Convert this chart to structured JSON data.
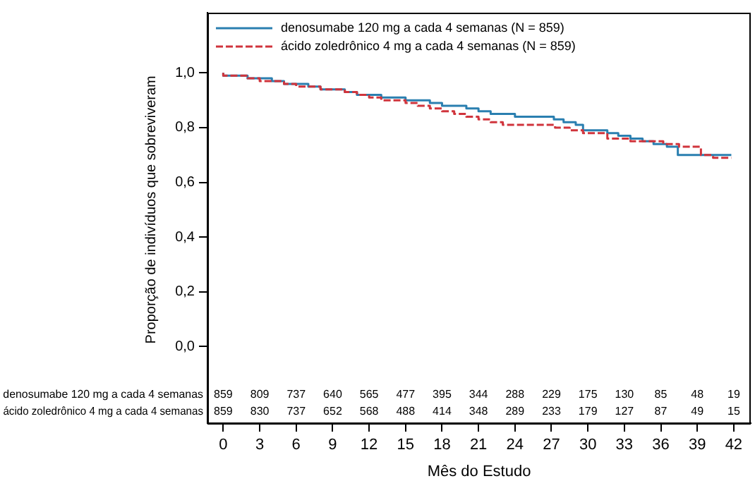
{
  "chart_data": {
    "type": "step",
    "xlabel": "Mês do Estudo",
    "ylabel": "Proporção de indivíduos que sobreviveram",
    "xlim": [
      -1.3,
      43.4
    ],
    "ylim": [
      -0.28,
      1.22
    ],
    "xticks": [
      0,
      3,
      6,
      9,
      12,
      15,
      18,
      21,
      24,
      27,
      30,
      33,
      36,
      39,
      42
    ],
    "yticks": [
      {
        "value": 0,
        "label": "0,0"
      },
      {
        "value": 0.2,
        "label": "0,2"
      },
      {
        "value": 0.4,
        "label": "0,4"
      },
      {
        "value": 0.6,
        "label": "0,6"
      },
      {
        "value": 0.8,
        "label": "0,8"
      },
      {
        "value": 1,
        "label": "1,0"
      }
    ],
    "grid": false,
    "legend": "top left",
    "marker": "none",
    "series": [
      {
        "name": "denosumabe 120 mg a cada 4 semanas (N = 859)",
        "color": "#2a7fb0",
        "line_style": "solid",
        "x": [
          0,
          1,
          2,
          3,
          4,
          5,
          6,
          7,
          8,
          9,
          10,
          11,
          12,
          13,
          14,
          15,
          17,
          18,
          19,
          20,
          21,
          22,
          23,
          24,
          26.7,
          27.2,
          28,
          29,
          29.6,
          30,
          31.6,
          32.5,
          33.5,
          34.5,
          35.4,
          36.5,
          37.4,
          38.1,
          41.8
        ],
        "values": [
          1,
          0.99,
          0.99,
          0.98,
          0.98,
          0.97,
          0.96,
          0.96,
          0.95,
          0.94,
          0.94,
          0.93,
          0.92,
          0.92,
          0.91,
          0.91,
          0.9,
          0.89,
          0.88,
          0.88,
          0.87,
          0.86,
          0.85,
          0.85,
          0.84,
          0.84,
          0.83,
          0.82,
          0.81,
          0.79,
          0.79,
          0.78,
          0.77,
          0.76,
          0.75,
          0.74,
          0.73,
          0.7,
          0.7
        ]
      },
      {
        "name": "ácido zoledrônico 4 mg a cada 4 semanas (N = 859)",
        "color": "#d0343c",
        "line_style": "dashed",
        "x": [
          0,
          1,
          2,
          3,
          4,
          5,
          6,
          7,
          8,
          9,
          10,
          11,
          12,
          13,
          14,
          15,
          16,
          17,
          18,
          19,
          20,
          21,
          22,
          23,
          23.8,
          27.3,
          28.5,
          29.6,
          31.6,
          33.5,
          35,
          36.2,
          37.5,
          39.3,
          40.3,
          41.8
        ],
        "values": [
          1,
          0.99,
          0.99,
          0.98,
          0.97,
          0.97,
          0.96,
          0.95,
          0.95,
          0.94,
          0.94,
          0.93,
          0.92,
          0.91,
          0.9,
          0.9,
          0.89,
          0.88,
          0.87,
          0.86,
          0.85,
          0.84,
          0.83,
          0.82,
          0.81,
          0.81,
          0.8,
          0.79,
          0.78,
          0.76,
          0.75,
          0.75,
          0.74,
          0.73,
          0.7,
          0.69
        ]
      }
    ],
    "annotations": [
      "denosumabe 120 mg a cada 4 semanas",
      "ácido zoledrônico 4 mg a cada 4 semanas",
      "859",
      "809",
      "737",
      "640",
      "565",
      "477",
      "395",
      "344",
      "288",
      "229",
      "175",
      "130",
      "85",
      "48",
      "19",
      "859",
      "830",
      "737",
      "652",
      "568",
      "488",
      "414",
      "348",
      "289",
      "233",
      "179",
      "127",
      "87",
      "49",
      "15"
    ]
  }
}
